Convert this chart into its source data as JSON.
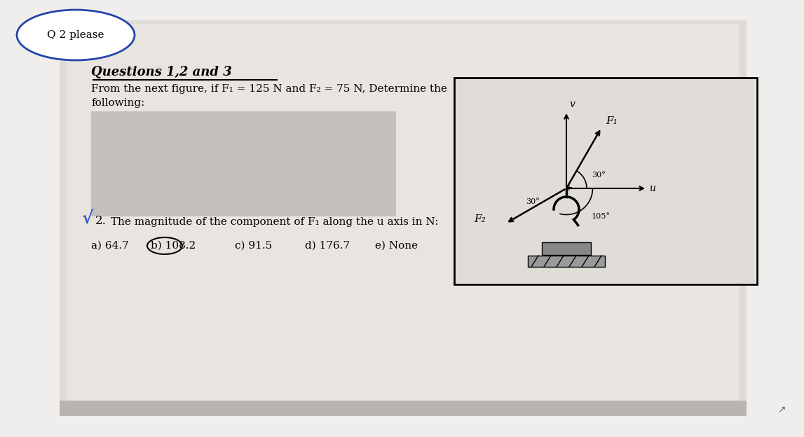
{
  "bg_color": "#f0eeec",
  "paper_color": "#dedad6",
  "title": "Questions 1,2 and 3",
  "intro_line1": "From the next figure, if F₁ = 125 N and F₂ = 75 N, Determine the",
  "intro_line2": "following:",
  "question_label": "2.",
  "question_text": " The magnitude of the component of F₁ along the u axis in N:",
  "answers": [
    "a) 64.7",
    "b) 108.2",
    "c) 91.5",
    "d) 176.7",
    "e) None"
  ],
  "correct_answer_idx": 1,
  "circle_label": "Q 2 please",
  "ellipse_color": "#2244aa",
  "check_color": "#3355cc",
  "angles": [
    "30°",
    "30°",
    "105°"
  ],
  "force_labels": [
    "F₁",
    "F₂",
    "v",
    "u"
  ]
}
